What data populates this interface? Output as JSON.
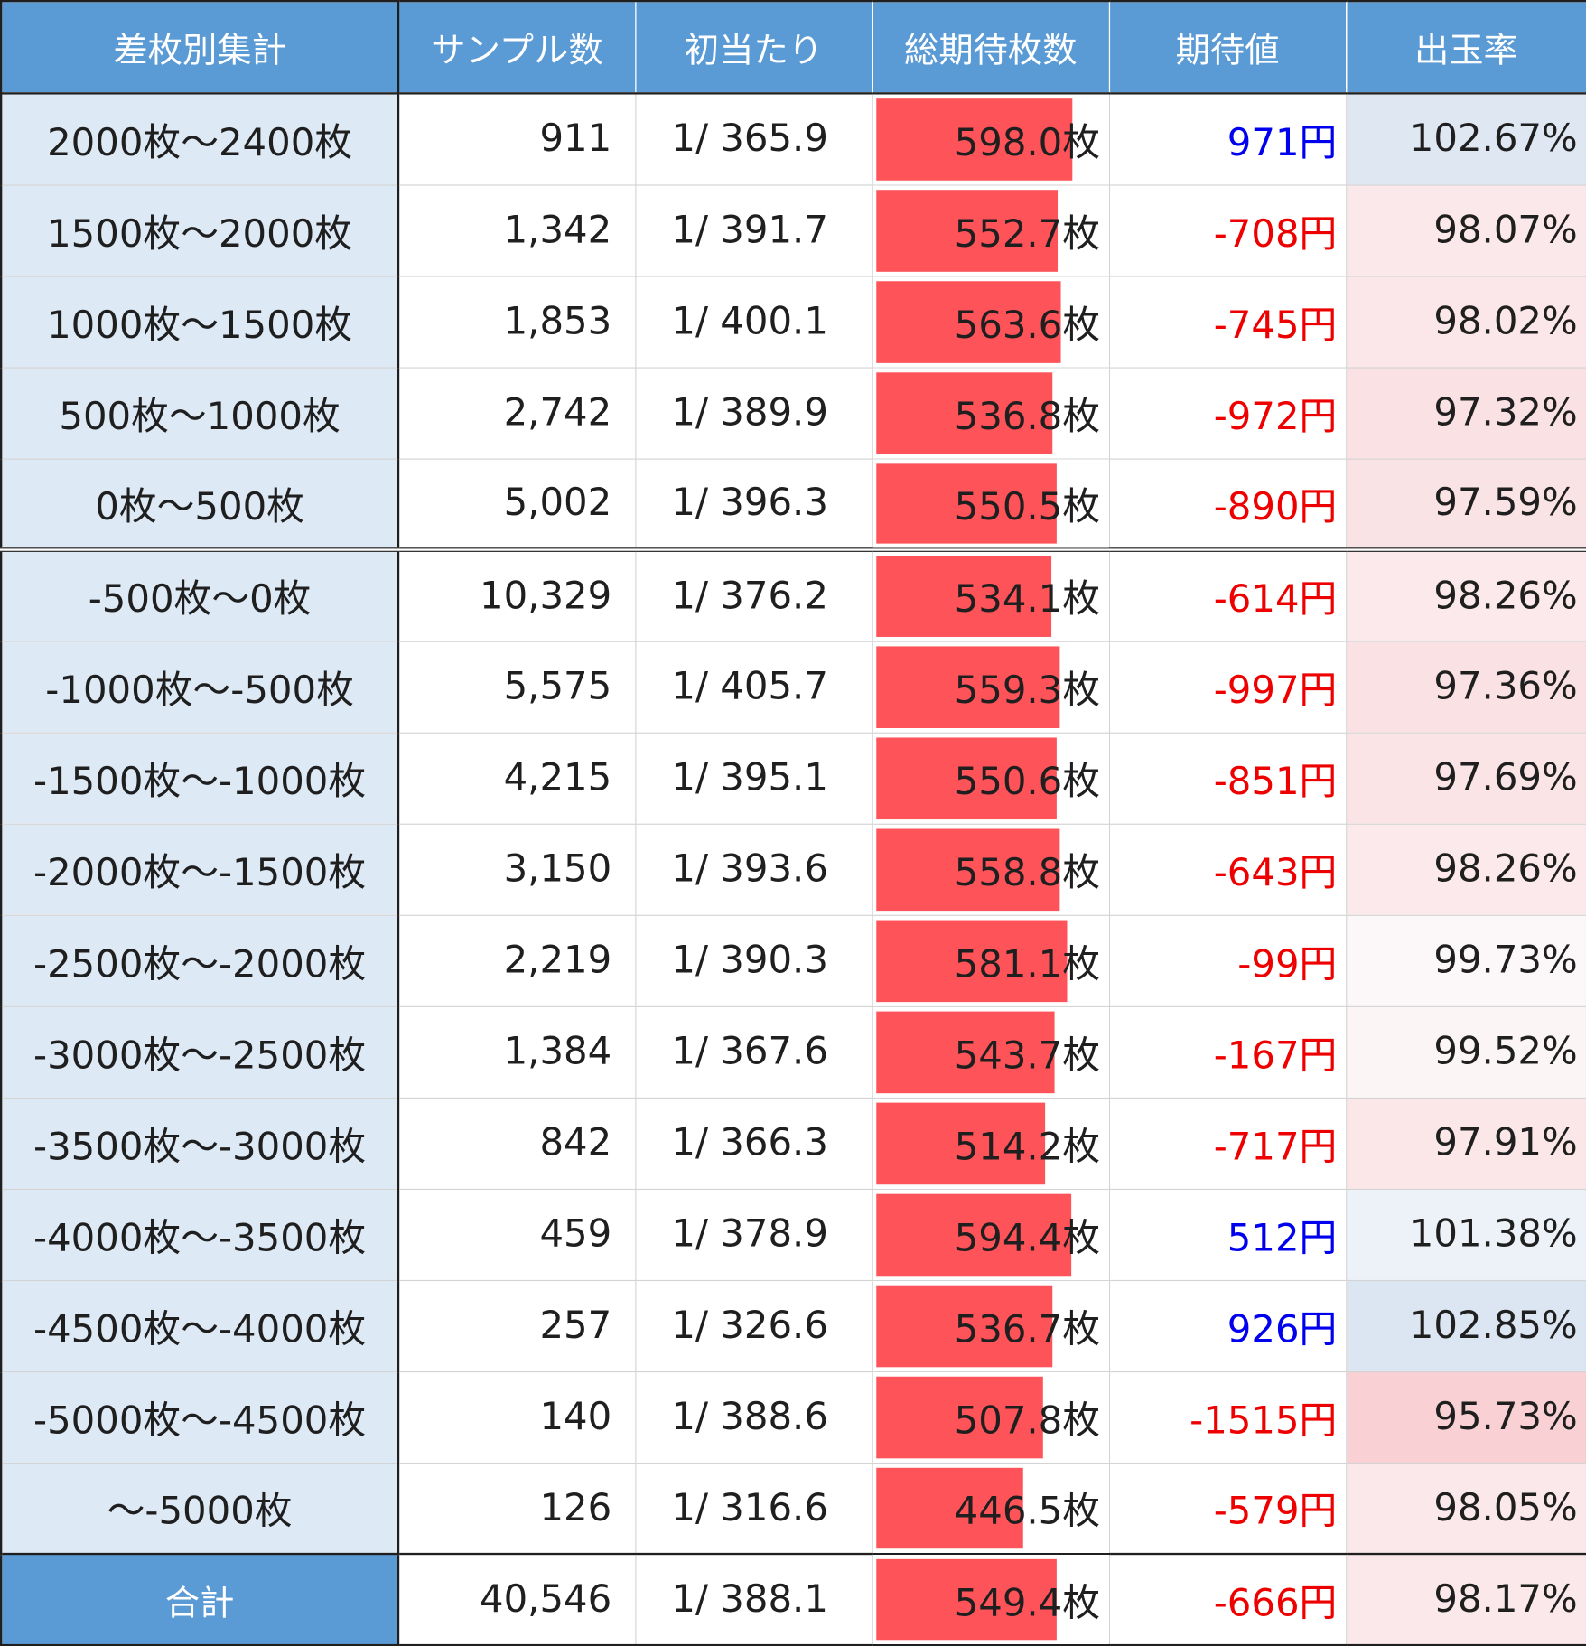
{
  "headers": [
    "差枚別集計",
    "サンプル数",
    "初当たり",
    "総期待枚数",
    "期待値",
    "出玉率"
  ],
  "bar_max": 598.0,
  "colors": {
    "header_bg": "#5b9bd5",
    "label_bg": "#dde9f5",
    "bar": "#fd5359",
    "positive_ev": "#0000ee",
    "negative_ev": "#ee0000",
    "rate_high": "#dce6f2",
    "rate_low": "#f9d0d3"
  },
  "rows": [
    {
      "label": "2000枚～2400枚",
      "samples": "911",
      "first_hit": "1/ 365.9",
      "expected_count": "598.0枚",
      "bar_value": 598.0,
      "ev": "971円",
      "ev_sign": "pos",
      "rate": "102.67%",
      "rate_bg": "#dfe7f3"
    },
    {
      "label": "1500枚～2000枚",
      "samples": "1,342",
      "first_hit": "1/ 391.7",
      "expected_count": "552.7枚",
      "bar_value": 552.7,
      "ev": "-708円",
      "ev_sign": "neg",
      "rate": "98.07%",
      "rate_bg": "#fbe8ea"
    },
    {
      "label": "1000枚～1500枚",
      "samples": "1,853",
      "first_hit": "1/ 400.1",
      "expected_count": "563.6枚",
      "bar_value": 563.6,
      "ev": "-745円",
      "ev_sign": "neg",
      "rate": "98.02%",
      "rate_bg": "#fbe7e9"
    },
    {
      "label": "500枚～1000枚",
      "samples": "2,742",
      "first_hit": "1/ 389.9",
      "expected_count": "536.8枚",
      "bar_value": 536.8,
      "ev": "-972円",
      "ev_sign": "neg",
      "rate": "97.32%",
      "rate_bg": "#fae1e3"
    },
    {
      "label": "0枚～500枚",
      "samples": "5,002",
      "first_hit": "1/ 396.3",
      "expected_count": "550.5枚",
      "bar_value": 550.5,
      "ev": "-890円",
      "ev_sign": "neg",
      "rate": "97.59%",
      "rate_bg": "#fae3e5"
    },
    {
      "label": "-500枚～0枚",
      "samples": "10,329",
      "first_hit": "1/ 376.2",
      "expected_count": "534.1枚",
      "bar_value": 534.1,
      "ev": "-614円",
      "ev_sign": "neg",
      "rate": "98.26%",
      "rate_bg": "#fbe9eb"
    },
    {
      "label": "-1000枚～-500枚",
      "samples": "5,575",
      "first_hit": "1/ 405.7",
      "expected_count": "559.3枚",
      "bar_value": 559.3,
      "ev": "-997円",
      "ev_sign": "neg",
      "rate": "97.36%",
      "rate_bg": "#fae1e3"
    },
    {
      "label": "-1500枚～-1000枚",
      "samples": "4,215",
      "first_hit": "1/ 395.1",
      "expected_count": "550.6枚",
      "bar_value": 550.6,
      "ev": "-851円",
      "ev_sign": "neg",
      "rate": "97.69%",
      "rate_bg": "#fae4e6"
    },
    {
      "label": "-2000枚～-1500枚",
      "samples": "3,150",
      "first_hit": "1/ 393.6",
      "expected_count": "558.8枚",
      "bar_value": 558.8,
      "ev": "-643円",
      "ev_sign": "neg",
      "rate": "98.26%",
      "rate_bg": "#fbe9eb"
    },
    {
      "label": "-2500枚～-2000枚",
      "samples": "2,219",
      "first_hit": "1/ 390.3",
      "expected_count": "581.1枚",
      "bar_value": 581.1,
      "ev": "-99円",
      "ev_sign": "neg",
      "rate": "99.73%",
      "rate_bg": "#fcf8f9"
    },
    {
      "label": "-3000枚～-2500枚",
      "samples": "1,384",
      "first_hit": "1/ 367.6",
      "expected_count": "543.7枚",
      "bar_value": 543.7,
      "ev": "-167円",
      "ev_sign": "neg",
      "rate": "99.52%",
      "rate_bg": "#fcf5f6"
    },
    {
      "label": "-3500枚～-3000枚",
      "samples": "842",
      "first_hit": "1/ 366.3",
      "expected_count": "514.2枚",
      "bar_value": 514.2,
      "ev": "-717円",
      "ev_sign": "neg",
      "rate": "97.91%",
      "rate_bg": "#fbe6e8"
    },
    {
      "label": "-4000枚～-3500枚",
      "samples": "459",
      "first_hit": "1/ 378.9",
      "expected_count": "594.4枚",
      "bar_value": 594.4,
      "ev": "512円",
      "ev_sign": "pos",
      "rate": "101.38%",
      "rate_bg": "#edf1f8"
    },
    {
      "label": "-4500枚～-4000枚",
      "samples": "257",
      "first_hit": "1/ 326.6",
      "expected_count": "536.7枚",
      "bar_value": 536.7,
      "ev": "926円",
      "ev_sign": "pos",
      "rate": "102.85%",
      "rate_bg": "#dce6f2"
    },
    {
      "label": "-5000枚～-4500枚",
      "samples": "140",
      "first_hit": "1/ 388.6",
      "expected_count": "507.8枚",
      "bar_value": 507.8,
      "ev": "-1515円",
      "ev_sign": "neg",
      "rate": "95.73%",
      "rate_bg": "#f9d0d3"
    },
    {
      "label": "～-5000枚",
      "samples": "126",
      "first_hit": "1/ 316.6",
      "expected_count": "446.5枚",
      "bar_value": 446.5,
      "ev": "-579円",
      "ev_sign": "neg",
      "rate": "98.05%",
      "rate_bg": "#fbe8ea"
    }
  ],
  "total": {
    "label": "合計",
    "samples": "40,546",
    "first_hit": "1/ 388.1",
    "expected_count": "549.4枚",
    "bar_value": 549.4,
    "ev": "-666円",
    "ev_sign": "neg",
    "rate": "98.17%",
    "rate_bg": "#fbe8ea"
  }
}
